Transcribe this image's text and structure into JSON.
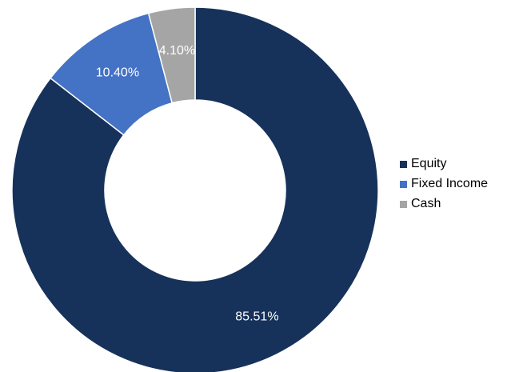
{
  "chart_data": {
    "type": "pie",
    "variant": "donut",
    "title": "",
    "series": [
      {
        "categories": [
          "Equity",
          "Fixed Income",
          "Cash"
        ],
        "values": [
          85.51,
          10.4,
          4.1
        ],
        "labels": [
          "85.51%",
          "10.40%",
          "4.10%"
        ],
        "colors": [
          "#17325a",
          "#4472c4",
          "#a5a5a5"
        ]
      }
    ],
    "legend": {
      "position": "right",
      "items": [
        {
          "label": "Equity",
          "color": "#17325a"
        },
        {
          "label": "Fixed Income",
          "color": "#4472c4"
        },
        {
          "label": "Cash",
          "color": "#a5a5a5"
        }
      ]
    }
  }
}
